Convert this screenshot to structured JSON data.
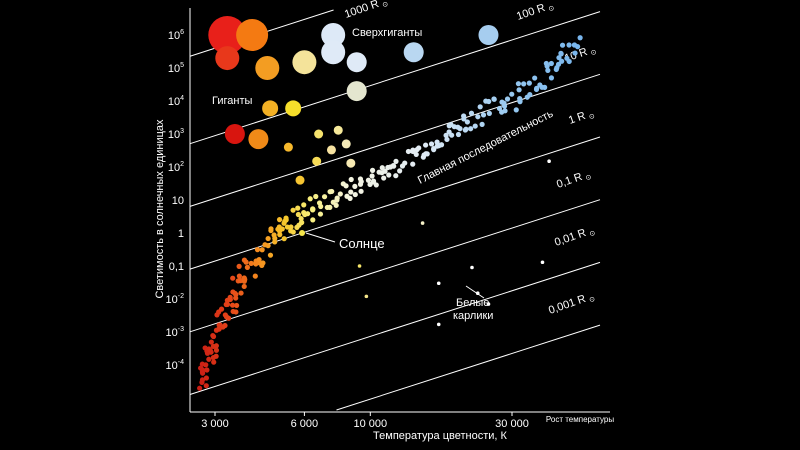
{
  "chart_data": {
    "type": "scatter",
    "title": "",
    "xlabel": "Температура цветности, К",
    "ylabel": "Светимость в солнечных единицах",
    "x_scale": "log-reversed",
    "y_scale": "log",
    "xlim": [
      2400,
      70000
    ],
    "ylim": [
      1e-05,
      3000000
    ],
    "grid": false,
    "x_direction_note": "Рост температуры",
    "x_ticks": [
      "3 000",
      "6 000",
      "10 000",
      "30 000"
    ],
    "y_ticks": [
      {
        "base": "10",
        "exp": "6"
      },
      {
        "base": "10",
        "exp": "5"
      },
      {
        "base": "10",
        "exp": "4"
      },
      {
        "base": "10",
        "exp": "3"
      },
      {
        "base": "10",
        "exp": "2"
      },
      {
        "base": "10",
        "exp": ""
      },
      {
        "base": "1",
        "exp": ""
      },
      {
        "base": "0,1",
        "exp": ""
      },
      {
        "base": "10",
        "exp": "-2"
      },
      {
        "base": "10",
        "exp": "-3"
      },
      {
        "base": "10",
        "exp": "-4"
      }
    ],
    "radius_lines": [
      "1000 R",
      "100 R",
      "10 R",
      "1 R",
      "0,1 R",
      "0,01 R",
      "0,001 R"
    ],
    "sun_symbol": "⊙",
    "annotations": {
      "supergiants": "Сверхгиганты",
      "giants": "Гиганты",
      "main_sequence": "Главная последовательность",
      "sun": "Солнце",
      "white_dwarfs_1": "Белые",
      "white_dwarfs_2": "карлики"
    },
    "series": [
      {
        "name": "Сверхгиганты",
        "points": [
          {
            "x": 3300,
            "y": 1000000,
            "size": "xl",
            "color": "#e8201a"
          },
          {
            "x": 4000,
            "y": 1000000,
            "size": "l",
            "color": "#f47a12"
          },
          {
            "x": 7500,
            "y": 1000000,
            "size": "m",
            "color": "#dde9f7"
          },
          {
            "x": 25000,
            "y": 1000000,
            "size": "s",
            "color": "#a6cdef"
          },
          {
            "x": 3300,
            "y": 200000,
            "size": "m",
            "color": "#e8381b"
          },
          {
            "x": 4500,
            "y": 100000,
            "size": "m",
            "color": "#f39d22"
          },
          {
            "x": 6000,
            "y": 150000,
            "size": "m",
            "color": "#f4e39a"
          },
          {
            "x": 7500,
            "y": 300000,
            "size": "m",
            "color": "#dfeaf7"
          },
          {
            "x": 9000,
            "y": 150000,
            "size": "s",
            "color": "#dfeaf7"
          },
          {
            "x": 14000,
            "y": 300000,
            "size": "s",
            "color": "#b9d7f1"
          }
        ]
      },
      {
        "name": "Гиганты",
        "points": [
          {
            "x": 3500,
            "y": 1000,
            "size": "s",
            "color": "#d8150f"
          },
          {
            "x": 4200,
            "y": 700,
            "size": "s",
            "color": "#f08a18"
          },
          {
            "x": 4600,
            "y": 6000,
            "size": "xs",
            "color": "#f3b024"
          },
          {
            "x": 5500,
            "y": 6000,
            "size": "xs",
            "color": "#f6de2b"
          },
          {
            "x": 9000,
            "y": 20000,
            "size": "s",
            "color": "#e4e6cf"
          },
          {
            "x": 5300,
            "y": 400,
            "size": "xxs",
            "color": "#f7b82c"
          },
          {
            "x": 6700,
            "y": 1000,
            "size": "xxs",
            "color": "#f5e26d"
          },
          {
            "x": 7400,
            "y": 330,
            "size": "xxs",
            "color": "#f7e3a1"
          },
          {
            "x": 7800,
            "y": 1300,
            "size": "xxs",
            "color": "#f6e99a"
          },
          {
            "x": 8300,
            "y": 500,
            "size": "xxs",
            "color": "#f5eab8"
          },
          {
            "x": 6600,
            "y": 150,
            "size": "xxs",
            "color": "#f6db56"
          },
          {
            "x": 8600,
            "y": 130,
            "size": "xxs",
            "color": "#f6e9b2"
          },
          {
            "x": 5800,
            "y": 40,
            "size": "xxs",
            "color": "#f6c532"
          }
        ]
      },
      {
        "name": "Белые карлики",
        "points": [
          {
            "x": 40000,
            "y": 150,
            "color": "#ffffff"
          },
          {
            "x": 15000,
            "y": 2,
            "color": "#f6f2c9"
          },
          {
            "x": 9200,
            "y": 0.1,
            "color": "#f6e66a"
          },
          {
            "x": 9700,
            "y": 0.012,
            "color": "#f4e58a"
          },
          {
            "x": 17000,
            "y": 0.03,
            "color": "#ffffff"
          },
          {
            "x": 22000,
            "y": 0.09,
            "color": "#ffffff"
          },
          {
            "x": 38000,
            "y": 0.13,
            "color": "#ffffff"
          },
          {
            "x": 23000,
            "y": 0.015,
            "color": "#ffffff"
          },
          {
            "x": 25000,
            "y": 0.007,
            "color": "#ffffff"
          },
          {
            "x": 17000,
            "y": 0.0017,
            "color": "#ffffff"
          }
        ]
      },
      {
        "name": "Главная последовательность",
        "ridge": [
          {
            "x": 2700,
            "y": 3e-05,
            "spread": 0.6
          },
          {
            "x": 2900,
            "y": 0.0003,
            "spread": 0.8
          },
          {
            "x": 3200,
            "y": 0.003,
            "spread": 1.0
          },
          {
            "x": 3600,
            "y": 0.03,
            "spread": 1.0
          },
          {
            "x": 4200,
            "y": 0.25,
            "spread": 0.9
          },
          {
            "x": 5000,
            "y": 1.2,
            "spread": 0.8
          },
          {
            "x": 6000,
            "y": 4,
            "spread": 0.7
          },
          {
            "x": 7500,
            "y": 12,
            "spread": 0.7
          },
          {
            "x": 10000,
            "y": 40,
            "spread": 0.6
          },
          {
            "x": 13000,
            "y": 150,
            "spread": 0.6
          },
          {
            "x": 17000,
            "y": 700,
            "spread": 0.6
          },
          {
            "x": 22000,
            "y": 3000,
            "spread": 0.6
          },
          {
            "x": 30000,
            "y": 12000,
            "spread": 0.7
          },
          {
            "x": 40000,
            "y": 70000,
            "spread": 0.7
          },
          {
            "x": 50000,
            "y": 500000,
            "spread": 0.7
          }
        ],
        "sun_point": {
          "x": 5800,
          "y": 1
        }
      }
    ]
  }
}
